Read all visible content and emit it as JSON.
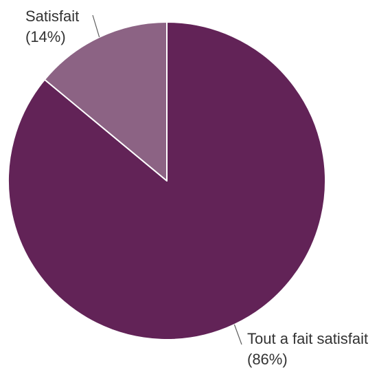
{
  "chart_data": {
    "type": "pie",
    "title": "",
    "legend": "none",
    "slices": [
      {
        "label": "Tout a fait satisfait",
        "value": 86,
        "percent_label": "(86%)",
        "color": "#622357"
      },
      {
        "label": "Satisfait",
        "value": 14,
        "percent_label": "(14%)",
        "color": "#8c6384"
      }
    ]
  }
}
